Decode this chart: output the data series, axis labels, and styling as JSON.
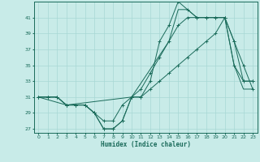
{
  "title": "",
  "xlabel": "Humidex (Indice chaleur)",
  "bg_color": "#c8ebe8",
  "grid_color": "#a8d8d4",
  "line_color": "#1a6b5a",
  "xlim": [
    -0.5,
    23.5
  ],
  "ylim": [
    26.5,
    43
  ],
  "xticks": [
    0,
    1,
    2,
    3,
    4,
    5,
    6,
    7,
    8,
    9,
    10,
    11,
    12,
    13,
    14,
    15,
    16,
    17,
    18,
    19,
    20,
    21,
    22,
    23
  ],
  "yticks": [
    27,
    29,
    31,
    33,
    35,
    37,
    39,
    41
  ],
  "series": [
    {
      "x": [
        0,
        1,
        2,
        3,
        4,
        5,
        6,
        7,
        8,
        9,
        10,
        11,
        12,
        13,
        14,
        15,
        16,
        17,
        18,
        19,
        20,
        21,
        22,
        23
      ],
      "y": [
        31,
        31,
        31,
        30,
        30,
        30,
        29,
        27,
        27,
        28,
        31,
        31,
        33,
        38,
        40,
        43,
        42,
        41,
        41,
        41,
        41,
        35,
        33,
        33
      ],
      "marker": true
    },
    {
      "x": [
        0,
        1,
        2,
        3,
        4,
        5,
        6,
        7,
        8,
        9,
        10,
        11,
        12,
        13,
        14,
        15,
        16,
        17,
        18,
        19,
        20,
        21,
        22,
        23
      ],
      "y": [
        31,
        31,
        31,
        30,
        30,
        30,
        29,
        27,
        27,
        28,
        31,
        32,
        34,
        36,
        38,
        40,
        41,
        41,
        41,
        41,
        41,
        38,
        35,
        32
      ],
      "marker": true
    },
    {
      "x": [
        0,
        1,
        2,
        3,
        4,
        5,
        6,
        7,
        8,
        9,
        10,
        11,
        12,
        13,
        14,
        15,
        16,
        17,
        18,
        19,
        20,
        21,
        22,
        23
      ],
      "y": [
        31,
        31,
        31,
        30,
        30,
        30,
        29,
        28,
        28,
        30,
        31,
        31,
        32,
        33,
        34,
        35,
        36,
        37,
        38,
        39,
        41,
        38,
        33,
        33
      ],
      "marker": true
    },
    {
      "x": [
        0,
        3,
        10,
        14,
        15,
        16,
        17,
        18,
        19,
        20,
        21,
        22,
        23
      ],
      "y": [
        31,
        30,
        31,
        38,
        42,
        42,
        41,
        41,
        41,
        41,
        35,
        32,
        32
      ],
      "marker": false
    }
  ]
}
